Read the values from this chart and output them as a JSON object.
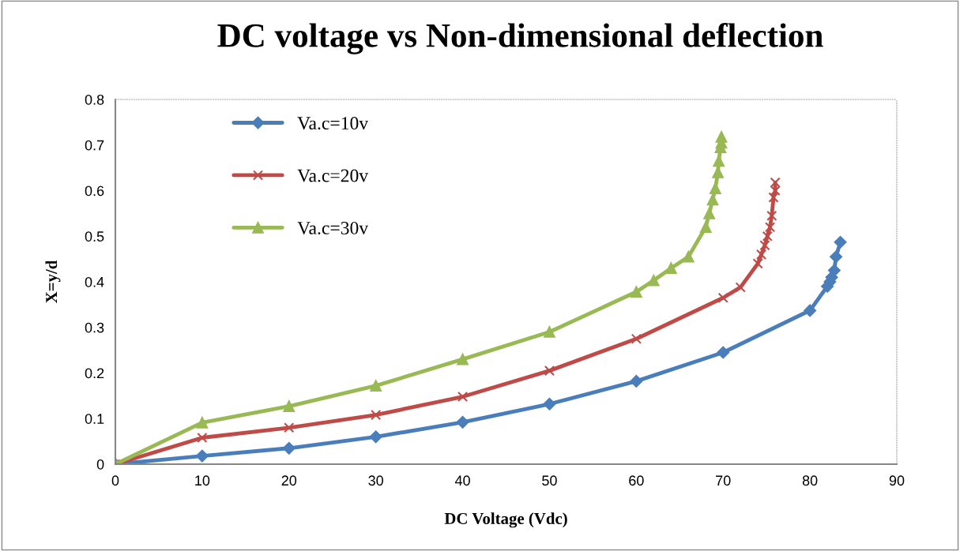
{
  "chart_data": {
    "type": "line",
    "title": "DC voltage vs Non-dimensional deflection",
    "xlabel": "DC Voltage (Vdc)",
    "ylabel": "X=y/d",
    "xlim": [
      0,
      90
    ],
    "xticks": [
      0,
      10,
      20,
      30,
      40,
      50,
      60,
      70,
      80,
      90
    ],
    "ylim": [
      0,
      0.8
    ],
    "yticks": [
      0,
      0.1,
      0.2,
      0.3,
      0.4,
      0.5,
      0.6,
      0.7,
      0.8
    ],
    "grid": false,
    "legend": "top left",
    "line_style": "solid",
    "series": [
      {
        "name": "Va.c=10v",
        "color": "#4a7ebb",
        "marker": "diamond",
        "x": [
          0,
          10,
          20,
          30,
          40,
          50,
          60,
          70,
          80,
          82,
          82.3,
          82.5,
          82.8,
          83,
          83.5
        ],
        "values": [
          0,
          0.018,
          0.035,
          0.06,
          0.092,
          0.132,
          0.182,
          0.245,
          0.337,
          0.39,
          0.4,
          0.41,
          0.425,
          0.455,
          0.487
        ]
      },
      {
        "name": "Va.c=20v",
        "color": "#be4b48",
        "marker": "cross",
        "x": [
          0,
          10,
          20,
          30,
          40,
          50,
          60,
          70,
          72,
          74,
          74.4,
          74.8,
          75.1,
          75.4,
          75.6,
          75.8,
          76,
          76
        ],
        "values": [
          0,
          0.058,
          0.08,
          0.108,
          0.148,
          0.205,
          0.275,
          0.365,
          0.388,
          0.44,
          0.46,
          0.48,
          0.5,
          0.52,
          0.545,
          0.585,
          0.6,
          0.618
        ]
      },
      {
        "name": "Va.c=30v",
        "color": "#98b954",
        "marker": "triangle",
        "x": [
          0,
          10,
          20,
          30,
          40,
          50,
          60,
          62,
          64,
          66,
          68,
          68.4,
          68.8,
          69.1,
          69.4,
          69.5,
          69.7,
          69.8,
          69.8
        ],
        "values": [
          0,
          0.091,
          0.127,
          0.172,
          0.23,
          0.29,
          0.378,
          0.403,
          0.43,
          0.455,
          0.52,
          0.55,
          0.58,
          0.605,
          0.64,
          0.665,
          0.695,
          0.705,
          0.718
        ]
      }
    ]
  }
}
